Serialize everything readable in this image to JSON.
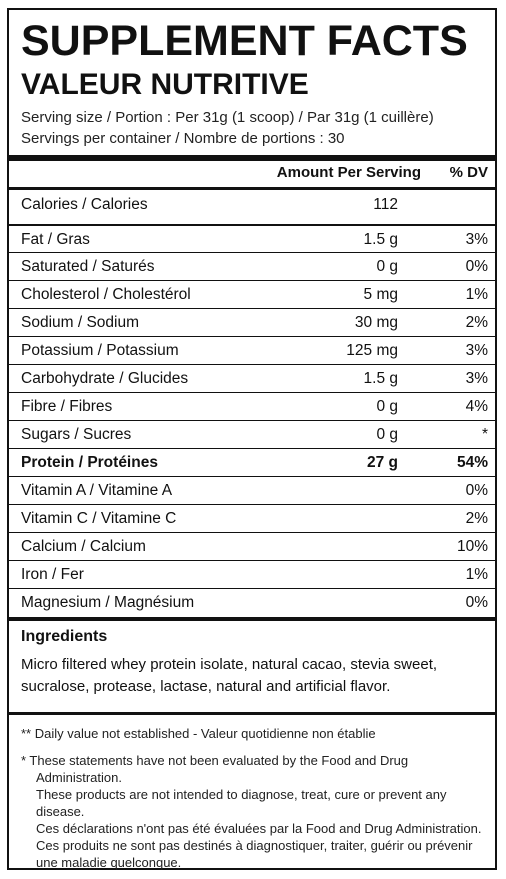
{
  "label": {
    "title": "SUPPLEMENT FACTS",
    "subtitle": "VALEUR NUTRITIVE",
    "serving_size": "Serving size / Portion : Per 31g (1 scoop) / Par 31g (1 cuillère)",
    "servings_per_container": "Servings per container / Nombre de portions : 30",
    "header_amount": "Amount Per Serving",
    "header_dv": "% DV"
  },
  "nutrients": [
    {
      "name": "Calories / Calories",
      "amount": "112",
      "dv": ""
    },
    {
      "name": "Fat / Gras",
      "amount": "1.5 g",
      "dv": "3%"
    },
    {
      "name": "Saturated / Saturés",
      "amount": "0 g",
      "dv": "0%"
    },
    {
      "name": "Cholesterol / Cholestérol",
      "amount": "5 mg",
      "dv": "1%"
    },
    {
      "name": "Sodium / Sodium",
      "amount": "30 mg",
      "dv": "2%"
    },
    {
      "name": "Potassium / Potassium",
      "amount": "125 mg",
      "dv": "3%"
    },
    {
      "name": "Carbohydrate / Glucides",
      "amount": "1.5 g",
      "dv": "3%"
    },
    {
      "name": "Fibre / Fibres",
      "amount": "0 g",
      "dv": "4%"
    },
    {
      "name": "Sugars / Sucres",
      "amount": "0 g",
      "dv": "*"
    },
    {
      "name": "Protein / Protéines",
      "amount": "27 g",
      "dv": "54%"
    },
    {
      "name": "Vitamin A / Vitamine A",
      "amount": "",
      "dv": "0%"
    },
    {
      "name": "Vitamin C / Vitamine C",
      "amount": "",
      "dv": "2%"
    },
    {
      "name": "Calcium / Calcium",
      "amount": "",
      "dv": "10%"
    },
    {
      "name": "Iron / Fer",
      "amount": "",
      "dv": "1%"
    },
    {
      "name": "Magnesium / Magnésium",
      "amount": "",
      "dv": "0%"
    }
  ],
  "ingredients": {
    "title": "Ingredients",
    "text": "Micro filtered whey protein isolate, natural cacao, stevia sweet, sucralose, protease, lactase, natural and artificial flavor."
  },
  "footnotes": {
    "daily_value": "** Daily value not established - Valeur quotidienne non établie",
    "disclaimer_lines": [
      "* These statements have not been evaluated by the Food and Drug Administration.",
      "These products are not intended to diagnose, treat, cure or prevent any disease.",
      "Ces déclarations n'ont pas été évaluées par la Food and Drug Administration.",
      "Ces produits ne sont pas destinés à diagnostiquer, traiter, guérir ou prévenir",
      "une maladie quelconque."
    ]
  }
}
